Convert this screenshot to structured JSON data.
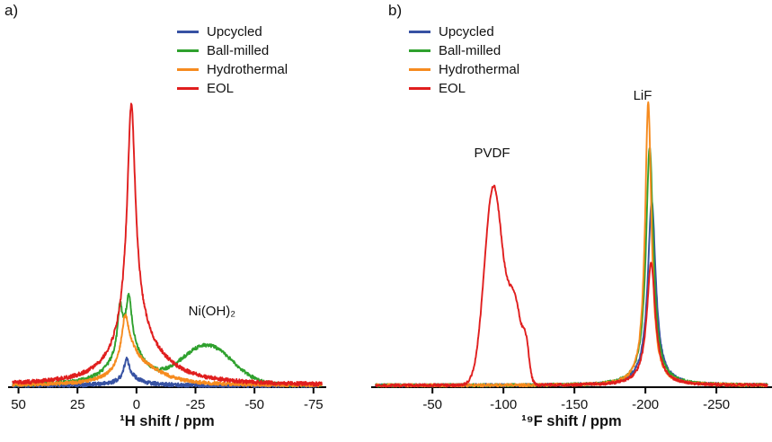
{
  "figure": {
    "background": "#ffffff",
    "axis_color": "#000000",
    "text_color": "#111111"
  },
  "chart_data": [
    {
      "type": "line",
      "panel_label": "a)",
      "title": "",
      "xlabel": "¹H shift / ppm",
      "ylabel": "",
      "x_range": [
        52.5,
        -78.5
      ],
      "x_ticks": [
        50,
        25,
        0,
        -25,
        -50,
        -75
      ],
      "ylim": [
        0,
        1.1
      ],
      "grid": false,
      "legend_position": "upper-center-inside",
      "legend": [
        "Upcycled",
        "Ball-milled",
        "Hydrothermal",
        "EOL"
      ],
      "annotations": [
        {
          "text": "Ni(OH)₂",
          "x": -32,
          "y": 0.235
        }
      ],
      "series": [
        {
          "name": "Upcycled",
          "color": "#3752a3",
          "noise": 0.007,
          "peaks": [
            {
              "shape": "lorentz",
              "c": 4.2,
              "w": 1.3,
              "a": 0.065
            },
            {
              "shape": "lorentz",
              "c": 3.0,
              "w": 5.0,
              "a": 0.03
            }
          ]
        },
        {
          "name": "Ball-milled",
          "color": "#2fa12e",
          "noise": 0.006,
          "peaks": [
            {
              "shape": "lorentz",
              "c": 7.0,
              "w": 1.1,
              "a": 0.14
            },
            {
              "shape": "lorentz",
              "c": 3.2,
              "w": 1.4,
              "a": 0.15
            },
            {
              "shape": "lorentz",
              "c": 4.0,
              "w": 7.0,
              "a": 0.16
            },
            {
              "shape": "gauss",
              "c": -30.0,
              "w": 15.0,
              "a": 0.135
            }
          ]
        },
        {
          "name": "Hydrothermal",
          "color": "#f68b1f",
          "noise": 0.006,
          "peaks": [
            {
              "shape": "lorentz",
              "c": 4.8,
              "w": 1.8,
              "a": 0.14
            },
            {
              "shape": "lorentz",
              "c": 3.0,
              "w": 6.0,
              "a": 0.1
            },
            {
              "shape": "lorentz",
              "c": -6.0,
              "w": 10.0,
              "a": 0.035
            }
          ]
        },
        {
          "name": "EOL",
          "color": "#e01e1e",
          "noise": 0.007,
          "peaks": [
            {
              "shape": "lorentz",
              "c": 2.2,
              "w": 2.0,
              "a": 0.72
            },
            {
              "shape": "lorentz",
              "c": 2.0,
              "w": 6.5,
              "a": 0.2
            },
            {
              "shape": "lorentz",
              "c": -3.0,
              "w": 15.0,
              "a": 0.08
            }
          ]
        }
      ]
    },
    {
      "type": "line",
      "panel_label": "b)",
      "title": "",
      "xlabel": "¹⁹F shift / ppm",
      "ylabel": "",
      "x_range": [
        -10,
        -286
      ],
      "x_ticks": [
        -50,
        -100,
        -150,
        -200,
        -250
      ],
      "ylim": [
        0,
        1.1
      ],
      "grid": false,
      "legend_position": "upper-left-inside",
      "legend": [
        "Upcycled",
        "Ball-milled",
        "Hydrothermal",
        "EOL"
      ],
      "annotations": [
        {
          "text": "PVDF",
          "x": -92,
          "y": 0.79
        },
        {
          "text": "LiF",
          "x": -198,
          "y": 0.995
        }
      ],
      "series": [
        {
          "name": "Upcycled",
          "color": "#3752a3",
          "noise": 0.005,
          "peaks": [
            {
              "shape": "lorentz",
              "c": -204.5,
              "w": 3.2,
              "a": 0.6
            },
            {
              "shape": "lorentz",
              "c": -204.0,
              "w": 8.0,
              "a": 0.05
            }
          ]
        },
        {
          "name": "Ball-milled",
          "color": "#2fa12e",
          "noise": 0.005,
          "peaks": [
            {
              "shape": "lorentz",
              "c": -203.0,
              "w": 3.0,
              "a": 0.78
            },
            {
              "shape": "lorentz",
              "c": -203.0,
              "w": 7.0,
              "a": 0.06
            }
          ]
        },
        {
          "name": "Hydrothermal",
          "color": "#f68b1f",
          "noise": 0.005,
          "peaks": [
            {
              "shape": "lorentz",
              "c": -202.0,
              "w": 2.6,
              "a": 0.95
            },
            {
              "shape": "lorentz",
              "c": -202.0,
              "w": 6.0,
              "a": 0.05
            }
          ]
        },
        {
          "name": "EOL",
          "color": "#e01e1e",
          "noise": 0.005,
          "peaks": [
            {
              "shape": "gauss",
              "c": -93.0,
              "w": 9.0,
              "a": 0.7
            },
            {
              "shape": "gauss",
              "c": -108.0,
              "w": 7.0,
              "a": 0.28
            },
            {
              "shape": "gauss",
              "c": -116.0,
              "w": 3.0,
              "a": 0.1
            },
            {
              "shape": "lorentz",
              "c": -204.0,
              "w": 3.5,
              "a": 0.4
            },
            {
              "shape": "lorentz",
              "c": -204.0,
              "w": 8.0,
              "a": 0.03
            }
          ]
        }
      ]
    }
  ]
}
